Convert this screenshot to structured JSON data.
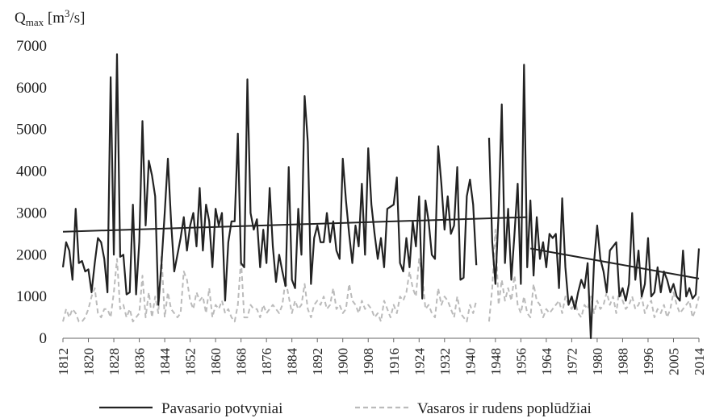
{
  "chart_data": {
    "type": "line",
    "y_label": {
      "base": "Q",
      "sub": "max",
      "text": " [m",
      "sup": "3",
      "end": "/s]"
    },
    "categories": [
      "1812",
      null,
      null,
      null,
      null,
      null,
      null,
      null,
      "1820",
      null,
      null,
      null,
      null,
      null,
      null,
      null,
      "1828",
      null,
      null,
      null,
      null,
      null,
      null,
      null,
      "1836",
      null,
      null,
      null,
      null,
      null,
      null,
      null,
      "1844",
      null,
      null,
      null,
      null,
      null,
      null,
      null,
      "1852",
      null,
      null,
      null,
      null,
      null,
      null,
      null,
      "1860",
      null,
      null,
      null,
      null,
      null,
      null,
      null,
      "1868",
      null,
      null,
      null,
      null,
      null,
      null,
      null,
      "1876",
      null,
      null,
      null,
      null,
      null,
      null,
      null,
      "1884",
      null,
      null,
      null,
      null,
      null,
      null,
      null,
      "1892",
      null,
      null,
      null,
      null,
      null,
      null,
      null,
      "1900",
      null,
      null,
      null,
      null,
      null,
      null,
      null,
      "1908",
      null,
      null,
      null,
      null,
      null,
      null,
      null,
      "1916",
      null,
      null,
      null,
      null,
      null,
      null,
      null,
      "1924",
      null,
      null,
      null,
      null,
      null,
      null,
      null,
      "1932",
      null,
      null,
      null,
      null,
      null,
      null,
      null,
      "1940",
      null,
      null,
      null,
      null,
      null,
      null,
      null,
      "1948",
      null,
      null,
      null,
      null,
      null,
      null,
      null,
      "1956",
      null,
      null,
      null,
      null,
      null,
      null,
      null,
      "1964",
      null,
      null,
      null,
      null,
      null,
      null,
      null,
      "1972",
      null,
      null,
      null,
      null,
      null,
      null,
      null,
      "1980",
      null,
      null,
      null,
      null,
      null,
      null,
      null,
      "1988",
      null,
      null,
      null,
      null,
      null,
      null,
      null,
      "1996",
      null,
      null,
      null,
      null,
      null,
      null,
      null,
      "2005",
      null,
      null,
      null,
      null,
      null,
      null,
      null,
      "2014"
    ],
    "series": [
      {
        "name": "Pavasario potvyniai",
        "color": "#222222",
        "dash": false,
        "values": [
          1700,
          2300,
          2100,
          1400,
          3100,
          1800,
          1850,
          1600,
          1650,
          1100,
          1800,
          2400,
          2300,
          1900,
          1100,
          6250,
          2000,
          6800,
          1950,
          2000,
          1050,
          1100,
          3200,
          1050,
          2300,
          5200,
          2700,
          4250,
          3900,
          3400,
          800,
          1800,
          3000,
          4300,
          2800,
          1600,
          2000,
          2400,
          2900,
          2100,
          2700,
          3000,
          2200,
          3600,
          2100,
          3200,
          2800,
          1700,
          3100,
          2700,
          3000,
          900,
          2300,
          2800,
          2800,
          4900,
          1800,
          1700,
          6200,
          3000,
          2600,
          2850,
          1700,
          2600,
          1800,
          3600,
          2200,
          1350,
          2000,
          1600,
          1250,
          4100,
          1400,
          1200,
          3100,
          2000,
          5800,
          4700,
          1300,
          2400,
          2700,
          2300,
          2300,
          3000,
          2300,
          2800,
          2100,
          1900,
          4300,
          3300,
          2500,
          1800,
          2700,
          2200,
          3700,
          2000,
          4550,
          3200,
          2500,
          1900,
          2400,
          1700,
          3100,
          3150,
          3200,
          3850,
          1800,
          1600,
          2400,
          1700,
          2800,
          2200,
          3400,
          950,
          3300,
          2800,
          2000,
          1900,
          4600,
          3700,
          2600,
          3400,
          2500,
          2700,
          4100,
          1400,
          1450,
          3400,
          3800,
          3200,
          1750,
          null,
          null,
          null,
          4800,
          2300,
          1300,
          3000,
          5600,
          1800,
          3100,
          1400,
          2500,
          3700,
          1300,
          6550,
          1700,
          3300,
          1500,
          2900,
          1900,
          2300,
          1700,
          2500,
          2400,
          2500,
          1200,
          3350,
          1700,
          800,
          1000,
          700,
          1100,
          1400,
          1200,
          1800,
          0,
          1800,
          2700,
          1900,
          1600,
          1100,
          2100,
          2200,
          2300,
          1000,
          1200,
          900,
          1300,
          3000,
          1400,
          2100,
          1000,
          1300,
          2400,
          1000,
          1100,
          1700,
          1100,
          1600,
          1400,
          1100,
          1300,
          1000,
          900,
          2100,
          1000,
          1200,
          950,
          1050,
          2150
        ]
      },
      {
        "name": "Vasaros ir rudens poplūdžiai",
        "color": "#bbbbbb",
        "dash": true,
        "values": [
          400,
          700,
          500,
          700,
          600,
          400,
          400,
          500,
          700,
          1000,
          1200,
          600,
          500,
          700,
          700,
          500,
          1100,
          1900,
          700,
          800,
          500,
          700,
          400,
          500,
          600,
          1500,
          500,
          1100,
          500,
          1000,
          600,
          2000,
          500,
          1100,
          700,
          600,
          500,
          600,
          1600,
          1400,
          900,
          700,
          1100,
          900,
          1000,
          600,
          1200,
          500,
          800,
          700,
          900,
          600,
          700,
          500,
          400,
          800,
          1900,
          500,
          500,
          800,
          700,
          700,
          500,
          800,
          600,
          700,
          800,
          700,
          600,
          800,
          1400,
          1000,
          600,
          900,
          700,
          800,
          1300,
          700,
          500,
          800,
          900,
          800,
          1000,
          700,
          800,
          1200,
          700,
          800,
          600,
          700,
          1300,
          900,
          800,
          600,
          900,
          700,
          800,
          700,
          500,
          600,
          400,
          900,
          700,
          500,
          800,
          600,
          1000,
          900,
          1100,
          1600,
          1200,
          1000,
          1900,
          1500,
          700,
          800,
          600,
          500,
          1200,
          800,
          1000,
          900,
          700,
          500,
          1000,
          600,
          500,
          400,
          800,
          600,
          900,
          null,
          null,
          null,
          400,
          1200,
          2600,
          800,
          1400,
          900,
          1200,
          900,
          1500,
          800,
          600,
          1000,
          600,
          500,
          1300,
          900,
          800,
          500,
          700,
          600,
          700,
          800,
          900,
          600,
          1000,
          800,
          700,
          900,
          600,
          500,
          800,
          700,
          1000,
          600,
          900,
          700,
          800,
          1100,
          800,
          1000,
          600,
          1200,
          900,
          700,
          800,
          1000,
          700,
          800,
          1000,
          600,
          800,
          900,
          500,
          700,
          600,
          800,
          500,
          700,
          1100,
          800,
          600,
          700,
          800,
          900,
          500,
          700,
          1000
        ]
      }
    ],
    "trend_lines": [
      {
        "x": [
          1812,
          1958
        ],
        "values": [
          2550,
          2900
        ],
        "color": "#222222"
      },
      {
        "x": [
          1959,
          2014
        ],
        "values": [
          2150,
          1430
        ],
        "color": "#222222"
      }
    ],
    "ylim": [
      0,
      7000
    ],
    "yticks": [
      0,
      1000,
      2000,
      3000,
      4000,
      5000,
      6000,
      7000
    ],
    "grid": false,
    "legend": "bottom"
  }
}
